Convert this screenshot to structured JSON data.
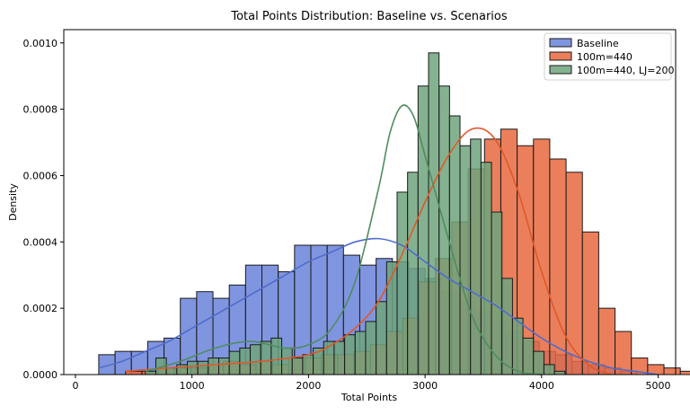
{
  "chart_data": {
    "type": "histogram",
    "title": "Total Points Distribution: Baseline vs. Scenarios",
    "xlabel": "Total Points",
    "ylabel": "Density",
    "xlim": [
      -100,
      5150
    ],
    "ylim": [
      0,
      0.00104
    ],
    "x_ticks": [
      0,
      1000,
      2000,
      3000,
      4000,
      5000
    ],
    "x_tick_labels": [
      "0",
      "1000",
      "2000",
      "3000",
      "4000",
      "5000"
    ],
    "y_ticks": [
      0,
      0.0002,
      0.0004,
      0.0006,
      0.0008,
      0.001
    ],
    "y_tick_labels": [
      "0.0000",
      "0.0002",
      "0.0004",
      "0.0006",
      "0.0008",
      "0.0010"
    ],
    "grid": false,
    "legend_position": "top-right",
    "series": [
      {
        "name": "Baseline",
        "color": "#6a83d9",
        "line_color": "#4f6ccc",
        "alpha": 0.85,
        "bin_start": 200,
        "bin_width": 140,
        "densities": [
          6e-05,
          7e-05,
          7e-05,
          0.0001,
          0.00011,
          0.00023,
          0.00025,
          0.00023,
          0.00027,
          0.00033,
          0.00033,
          0.00031,
          0.00039,
          0.00039,
          0.00039,
          0.00036,
          0.00033,
          0.00035,
          0.00034,
          0.00032,
          0.00029,
          0.00025,
          0.00022,
          0.00019,
          0.00016,
          0.00013,
          0.0001,
          7e-05,
          6e-05,
          4e-05,
          3e-05,
          2e-05,
          1e-05
        ],
        "kde_x": [
          200,
          400,
          600,
          800,
          1000,
          1200,
          1400,
          1600,
          1800,
          2000,
          2200,
          2400,
          2600,
          2800,
          3000,
          3200,
          3400,
          3600,
          3800,
          4000,
          4200,
          4400,
          4600,
          4800,
          5000
        ],
        "kde_y": [
          2e-05,
          4e-05,
          7e-05,
          0.0001,
          0.00014,
          0.00018,
          0.00022,
          0.00026,
          0.0003,
          0.00034,
          0.00037,
          0.0004,
          0.00041,
          0.00039,
          0.00034,
          0.00029,
          0.00025,
          0.00021,
          0.00016,
          0.00011,
          7e-05,
          4e-05,
          2e-05,
          1e-05,
          0.0
        ]
      },
      {
        "name": "100m=440",
        "color": "#e8693e",
        "line_color": "#e0582a",
        "alpha": 0.85,
        "bin_start": 430,
        "bin_width": 140,
        "densities": [
          1e-05,
          1e-05,
          2e-05,
          2e-05,
          2e-05,
          3e-05,
          4e-05,
          3e-05,
          4e-05,
          3e-05,
          5e-05,
          5e-05,
          6e-05,
          6e-05,
          7e-05,
          9e-05,
          0.00013,
          0.00017,
          0.00028,
          0.00035,
          0.00046,
          0.00062,
          0.00071,
          0.00074,
          0.00069,
          0.00071,
          0.00065,
          0.00061,
          0.00043,
          0.0002,
          0.00013,
          5e-05,
          3e-05,
          2e-05,
          1e-05
        ],
        "kde_x": [
          430,
          800,
          1200,
          1600,
          2000,
          2200,
          2400,
          2600,
          2800,
          3000,
          3200,
          3400,
          3600,
          3800,
          4000,
          4200,
          4400,
          4600
        ],
        "kde_y": [
          1e-05,
          2e-05,
          3e-05,
          4e-05,
          6e-05,
          9e-05,
          0.00014,
          0.00022,
          0.00036,
          0.00052,
          0.00066,
          0.00074,
          0.00071,
          0.00055,
          0.00031,
          0.00012,
          3e-05,
          0.0
        ]
      },
      {
        "name": "100m=440, LJ=200",
        "color": "#6fa57c",
        "line_color": "#4f8c5e",
        "alpha": 0.85,
        "bin_start": 600,
        "bin_width": 90,
        "densities": [
          1e-05,
          5e-05,
          2e-05,
          3e-05,
          4e-05,
          4e-05,
          5e-05,
          5e-05,
          7e-05,
          8e-05,
          9e-05,
          0.0001,
          0.00011,
          8e-05,
          5e-05,
          6e-05,
          8e-05,
          0.0001,
          0.0001,
          0.00012,
          0.00013,
          0.00016,
          0.00022,
          0.00034,
          0.00055,
          0.00061,
          0.00087,
          0.00097,
          0.00087,
          0.00078,
          0.00069,
          0.00071,
          0.00064,
          0.00049,
          0.00029,
          0.00017,
          0.00011,
          7e-05,
          3e-05,
          1e-05
        ],
        "kde_x": [
          600,
          900,
          1200,
          1500,
          1800,
          2000,
          2200,
          2400,
          2600,
          2700,
          2800,
          2900,
          3000,
          3200,
          3400,
          3600,
          3800,
          4000
        ],
        "kde_y": [
          1e-05,
          4e-05,
          8e-05,
          0.0001,
          8e-05,
          9e-05,
          0.00014,
          0.00028,
          0.00056,
          0.00073,
          0.00081,
          0.00078,
          0.00066,
          0.00041,
          0.00018,
          6e-05,
          1e-05,
          0.0
        ]
      }
    ]
  }
}
